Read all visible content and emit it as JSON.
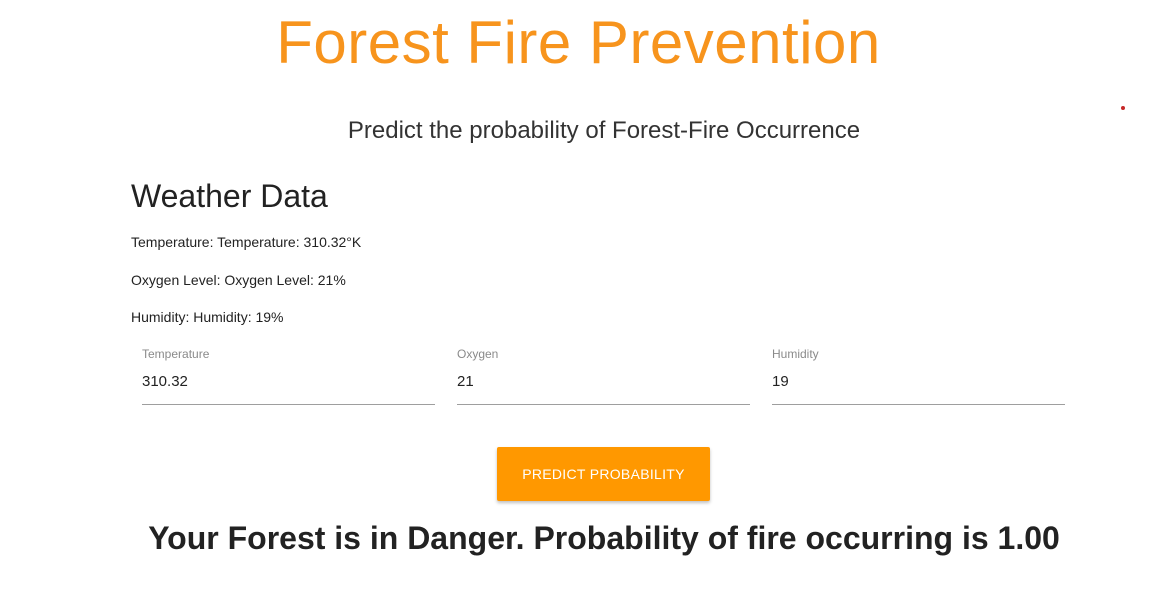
{
  "header": {
    "title": "Forest Fire Prevention",
    "subtitle": "Predict the probability of Forest-Fire Occurrence"
  },
  "weather": {
    "heading": "Weather Data",
    "temperature_line": "Temperature: Temperature: 310.32°K",
    "oxygen_line": "Oxygen Level: Oxygen Level: 21%",
    "humidity_line": "Humidity: Humidity: 19%"
  },
  "form": {
    "temperature": {
      "label": "Temperature",
      "value": "310.32"
    },
    "oxygen": {
      "label": "Oxygen",
      "value": "21"
    },
    "humidity": {
      "label": "Humidity",
      "value": "19"
    },
    "predict_label": "Predict Probability"
  },
  "result": {
    "text": "Your Forest is in Danger. Probability of fire occurring is 1.00"
  },
  "colors": {
    "accent": "#f7941d",
    "button": "#ff9800",
    "indicator": "#c62828"
  }
}
